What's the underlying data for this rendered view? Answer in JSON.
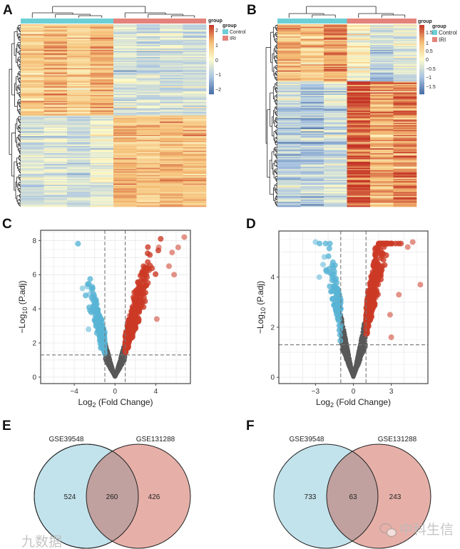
{
  "panels": {
    "A": "A",
    "B": "B",
    "C": "C",
    "D": "D",
    "E": "E",
    "F": "F"
  },
  "colors": {
    "control": "#6dcfd6",
    "iri": "#e3837b",
    "up": "#cc3b27",
    "down": "#5ab4d6",
    "ns": "#595959",
    "venn_left": "#c3e3ec",
    "venn_right": "#e6b0a8",
    "venn_overlap": "#c0a19f"
  },
  "chart_data": [
    {
      "id": "A",
      "type": "heatmap",
      "legend_title": "group",
      "groups": [
        "Control",
        "IRI"
      ],
      "samples_per_group": [
        4,
        4
      ],
      "colorbar_title": "group",
      "colorbar_ticks": [
        "2",
        "1",
        "0",
        "−1",
        "−2"
      ],
      "colorbar_range": [
        -2.3,
        2.3
      ],
      "row_clusters": [
        {
          "fraction": 0.5,
          "control_mean": 0.9,
          "iri_mean": -0.6
        },
        {
          "fraction": 0.5,
          "control_mean": -0.6,
          "iri_mean": 1.0
        }
      ]
    },
    {
      "id": "B",
      "type": "heatmap",
      "legend_title": "group",
      "groups": [
        "Control",
        "IRI"
      ],
      "samples_per_group": [
        3,
        3
      ],
      "colorbar_title": "group",
      "colorbar_ticks": [
        "1.5",
        "1",
        "0.5",
        "0",
        "−0.5",
        "−1",
        "−1.5"
      ],
      "colorbar_range": [
        -1.8,
        1.8
      ],
      "row_clusters": [
        {
          "fraction": 0.31,
          "control_mean": 0.9,
          "iri_mean": -0.6
        },
        {
          "fraction": 0.69,
          "control_mean": -0.6,
          "iri_mean": 0.95
        }
      ]
    },
    {
      "id": "C",
      "type": "scatter",
      "xlabel": {
        "pre": "Log",
        "sub": "2",
        "post": " (Fold Change)"
      },
      "ylabel": {
        "pre": "−Log",
        "sub": "10",
        "post": " (P.adj)"
      },
      "xlim": [
        -7.3,
        7.4
      ],
      "ylim": [
        -0.38,
        8.6
      ],
      "xticks": [
        {
          "v": -4,
          "l": "−4"
        },
        {
          "v": 0,
          "l": "0"
        },
        {
          "v": 4,
          "l": "4"
        }
      ],
      "yticks": [
        {
          "v": 0,
          "l": "0"
        },
        {
          "v": 2,
          "l": "2"
        },
        {
          "v": 4,
          "l": "4"
        },
        {
          "v": 6,
          "l": "6"
        },
        {
          "v": 8,
          "l": "8"
        }
      ],
      "fc_threshold": 1,
      "p_threshold": 1.3,
      "slope": 2.0,
      "up_spread": 1.25,
      "down_spread": 0.95,
      "highlighted_points": [
        [
          6.8,
          8.2
        ],
        [
          4.3,
          7.6
        ],
        [
          6.2,
          7.6
        ],
        [
          5.6,
          7.3
        ],
        [
          4.1,
          3.4
        ],
        [
          5.8,
          6.0
        ],
        [
          5.3,
          6.5
        ],
        [
          -3.2,
          5.2
        ],
        [
          -2.7,
          5.3
        ],
        [
          -2.6,
          2.8
        ]
      ],
      "grid": true
    },
    {
      "id": "D",
      "type": "scatter",
      "xlabel": {
        "pre": "Log",
        "sub": "2",
        "post": " (Fold Change)"
      },
      "ylabel": {
        "pre": "−Log",
        "sub": "10",
        "post": " (P.adj)"
      },
      "xlim": [
        -5.9,
        5.9
      ],
      "ylim": [
        -0.25,
        5.84
      ],
      "xticks": [
        {
          "v": -3,
          "l": "−3"
        },
        {
          "v": 0,
          "l": "0"
        },
        {
          "v": 3,
          "l": "3"
        }
      ],
      "yticks": [
        {
          "v": 0,
          "l": "0"
        },
        {
          "v": 2,
          "l": "2"
        },
        {
          "v": 4,
          "l": "4"
        }
      ],
      "fc_threshold": 1,
      "p_threshold": 1.3,
      "slope": 2.4,
      "up_spread": 1.05,
      "down_spread": 0.7,
      "highlighted_points": [
        [
          -3.0,
          5.4
        ],
        [
          -2.3,
          4.8
        ],
        [
          -2.4,
          4.5
        ],
        [
          -2.7,
          4.0
        ],
        [
          5.3,
          3.7
        ],
        [
          3.0,
          1.6
        ],
        [
          4.7,
          5.4
        ],
        [
          4.3,
          5.2
        ],
        [
          3.6,
          3.3
        ],
        [
          2.9,
          2.5
        ]
      ],
      "grid": true
    }
  ],
  "venn": [
    {
      "id": "E",
      "left_label": "GSE39548",
      "right_label": "GSE131288",
      "left_only": "524",
      "both": "260",
      "right_only": "426"
    },
    {
      "id": "F",
      "left_label": "GSE39548",
      "right_label": "GSE131288",
      "left_only": "733",
      "both": "63",
      "right_only": "243"
    }
  ],
  "watermark": {
    "text": "中科生信",
    "left_text": "九数据"
  }
}
